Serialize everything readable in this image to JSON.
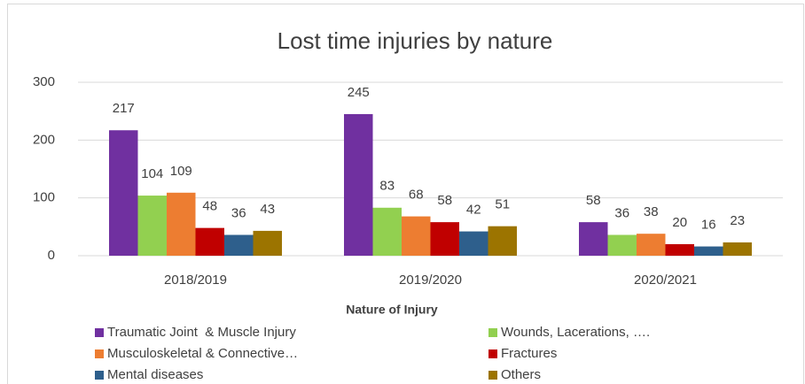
{
  "chart_data": {
    "type": "bar",
    "title": "Lost time injuries by nature",
    "x_label": "Nature of Injury",
    "categories": [
      "2018/2019",
      "2019/2020",
      "2020/2021"
    ],
    "series": [
      {
        "name": "Traumatic Joint  & Muscle Injury",
        "color": "#7030a0",
        "values": [
          217,
          245,
          58
        ]
      },
      {
        "name": "Wounds, Lacerations, ….",
        "color": "#92d050",
        "values": [
          104,
          83,
          36
        ]
      },
      {
        "name": "Musculoskeletal & Connective…",
        "color": "#ed7d31",
        "values": [
          109,
          68,
          38
        ]
      },
      {
        "name": "Fractures",
        "color": "#c00000",
        "values": [
          48,
          58,
          20
        ]
      },
      {
        "name": "Mental diseases",
        "color": "#2e5f8c",
        "values": [
          36,
          42,
          16
        ]
      },
      {
        "name": "Others",
        "color": "#9c7400",
        "values": [
          43,
          51,
          23
        ]
      }
    ],
    "ylim": [
      0,
      300
    ],
    "yticks": [
      0,
      100,
      200,
      300
    ],
    "grid": true,
    "legend": "bottom"
  }
}
